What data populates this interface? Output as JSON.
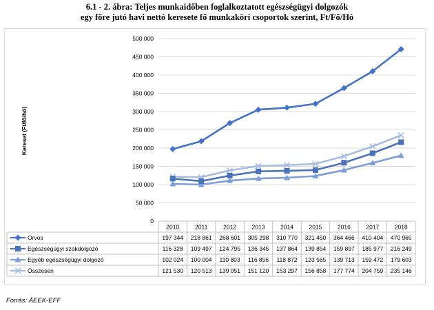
{
  "header": {
    "title_line1": "6.1 - 2. ábra: Teljes munkaidőben foglalkoztatott egészségügyi dolgozók",
    "title_line2": "egy főre jutó havi nettó keresete fő munkaköri csoportok szerint, Ft/Fő/Hó"
  },
  "footer": {
    "source": "Forrás: ÁEEK-EFF"
  },
  "chart_data": {
    "type": "line",
    "title": "6.1 - 2. ábra: Teljes munkaidőben foglalkoztatott egészségügyi dolgozók egy főre jutó havi nettó keresete fő munkaköri csoportok szerint, Ft/Fő/Hó",
    "ylabel": "Kereset (Ft/fő/hó)",
    "xlabel": "",
    "ylim": [
      0,
      500000
    ],
    "yticks": [
      0,
      50000,
      100000,
      150000,
      200000,
      250000,
      300000,
      350000,
      400000,
      450000,
      500000
    ],
    "ytick_labels": [
      "0",
      "50 000",
      "100 000",
      "150 000",
      "200 000",
      "250 000",
      "300 000",
      "350 000",
      "400 000",
      "450 000",
      "500 000"
    ],
    "grid": true,
    "legend": "data-table",
    "categories": [
      "2010",
      "2011",
      "2012",
      "2013",
      "2014",
      "2015",
      "2016",
      "2017",
      "2018"
    ],
    "series": [
      {
        "name": "Orvos",
        "color": "#4472c4",
        "marker": "diamond",
        "values": [
          197344,
          218861,
          268601,
          305298,
          310770,
          321450,
          364466,
          410404,
          470965
        ],
        "labels": [
          "197 344",
          "218 861",
          "268 601",
          "305 298",
          "310 770",
          "321 450",
          "364 466",
          "410 404",
          "470 965"
        ]
      },
      {
        "name": "Egészségügyi szakdolgozó",
        "color": "#4a72b8",
        "marker": "square",
        "values": [
          116328,
          109497,
          124795,
          136345,
          137864,
          139854,
          159897,
          185977,
          216249
        ],
        "labels": [
          "116 328",
          "109 497",
          "124 795",
          "136 345",
          "137 864",
          "139 854",
          "159 897",
          "185 977",
          "216 249"
        ]
      },
      {
        "name": "Egyéb egészségügyi dolgozó",
        "color": "#7e9ed6",
        "marker": "triangle",
        "values": [
          102024,
          100004,
          110803,
          116856,
          118872,
          123565,
          139713,
          159472,
          179603
        ],
        "labels": [
          "102 024",
          "100 004",
          "110 803",
          "116 856",
          "118 872",
          "123 565",
          "139 713",
          "159 472",
          "179 603"
        ]
      },
      {
        "name": "Összesen",
        "color": "#a8bce0",
        "marker": "x",
        "values": [
          121530,
          120513,
          139051,
          151120,
          153297,
          156858,
          177774,
          204759,
          235146
        ],
        "labels": [
          "121 530",
          "120 513",
          "139 051",
          "151 120",
          "153 297",
          "156 858",
          "177 774",
          "204 759",
          "235 146"
        ]
      }
    ]
  }
}
